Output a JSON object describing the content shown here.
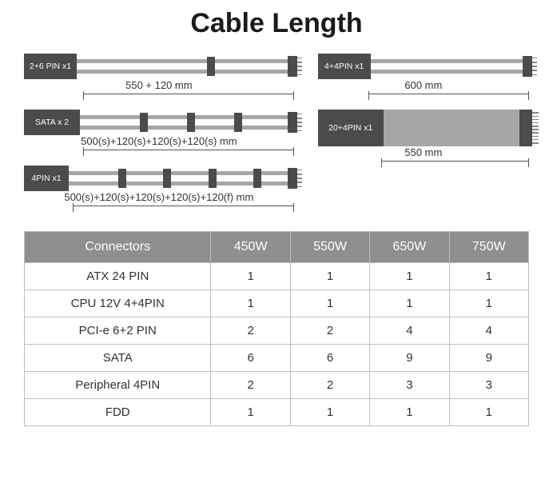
{
  "title": "Cable Length",
  "colors": {
    "label_bg": "#4b4b4b",
    "cable_fill": "#a6a6a6",
    "header_bg": "#8f8f8f",
    "border": "#bfbfbf",
    "text": "#333333"
  },
  "cables_left": [
    {
      "label": "2+6 PIN x1",
      "type": "dual",
      "label_width": 66,
      "marks_pct": [
        60
      ],
      "dim_text": "550 + 120 mm",
      "dim_left_pct": 22,
      "dim_right_pct": 0
    },
    {
      "label": "SATA x 2",
      "type": "dual",
      "label_width": 70,
      "marks_pct": [
        28,
        50,
        72
      ],
      "dim_text": "500(s)+120(s)+120(s)+120(s) mm",
      "dim_left_pct": 22,
      "dim_right_pct": 0
    },
    {
      "label": "4PIN x1",
      "type": "dual",
      "label_width": 56,
      "marks_pct": [
        22,
        42,
        62,
        82
      ],
      "dim_text": "500(s)+120(s)+120(s)+120(s)+120(f) mm",
      "dim_left_pct": 18,
      "dim_right_pct": 0
    }
  ],
  "cables_right": [
    {
      "label": "4+4PIN x1",
      "type": "dual",
      "label_width": 66,
      "marks_pct": [],
      "dim_text": "600 mm",
      "dim_left_pct": 24,
      "dim_right_pct": 0
    },
    {
      "label": "20+4PIN x1",
      "type": "thick",
      "label_width": 82,
      "marks_pct": [],
      "dim_text": "550 mm",
      "dim_left_pct": 30,
      "dim_right_pct": 0
    }
  ],
  "table": {
    "columns": [
      "Connectors",
      "450W",
      "550W",
      "650W",
      "750W"
    ],
    "rows": [
      [
        "ATX 24 PIN",
        "1",
        "1",
        "1",
        "1"
      ],
      [
        "CPU 12V 4+4PIN",
        "1",
        "1",
        "1",
        "1"
      ],
      [
        "PCI-e 6+2 PIN",
        "2",
        "2",
        "4",
        "4"
      ],
      [
        "SATA",
        "6",
        "6",
        "9",
        "9"
      ],
      [
        "Peripheral 4PIN",
        "2",
        "2",
        "3",
        "3"
      ],
      [
        "FDD",
        "1",
        "1",
        "1",
        "1"
      ]
    ]
  }
}
